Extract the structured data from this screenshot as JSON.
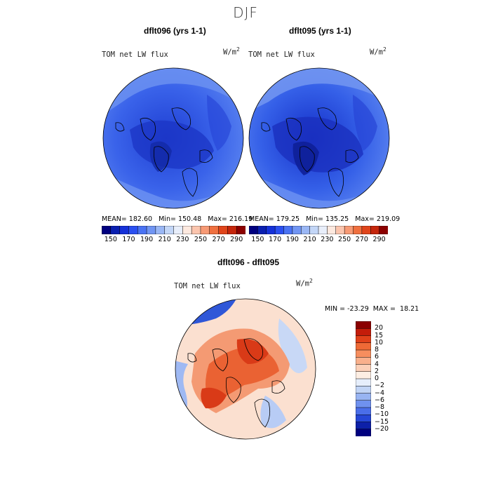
{
  "figure": {
    "title": "DJF"
  },
  "panels": [
    {
      "title": "dflt096 (yrs 1-1)",
      "field_label": "TOM net LW flux",
      "units": "W/m",
      "units_sup": "2",
      "mean_label": "MEAN=",
      "mean": "182.60",
      "min_label": "Min=",
      "min": "150.48",
      "max_label": "Max=",
      "max": "216.19"
    },
    {
      "title": "dflt095 (yrs 1-1)",
      "field_label": "TOM net LW flux",
      "units": "W/m",
      "units_sup": "2",
      "mean_label": "MEAN=",
      "mean": "179.25",
      "min_label": "Min=",
      "min": "135.25",
      "max_label": "Max=",
      "max": "219.09"
    }
  ],
  "abs_colorbar": {
    "tick_labels": [
      "150",
      "170",
      "190",
      "210",
      "230",
      "250",
      "270",
      "290"
    ],
    "colors": [
      "#00007f",
      "#0a1fb0",
      "#1531d8",
      "#2a4ff0",
      "#4a73f3",
      "#7195f3",
      "#9ab7f5",
      "#c3d6f7",
      "#e8eefa",
      "#fde9df",
      "#fbc5ae",
      "#f79a75",
      "#f0703f",
      "#e0451b",
      "#c5260c",
      "#8b0000"
    ]
  },
  "diff_panel": {
    "title": "dflt096 - dflt095",
    "field_label": "TOM net LW flux",
    "units": "W/m",
    "units_sup": "2",
    "min_label": "MIN =",
    "min": "-23.29",
    "max_label": "MAX =",
    "max": "18.21"
  },
  "diff_colorbar": {
    "tick_labels": [
      "20",
      "15",
      "10",
      "8",
      "6",
      "4",
      "2",
      "0",
      "−2",
      "−4",
      "−6",
      "−8",
      "−10",
      "−15",
      "−20"
    ],
    "colors": [
      "#8b0000",
      "#c41c0a",
      "#e0411a",
      "#ee6a36",
      "#f68e5e",
      "#f9b08c",
      "#fbd0b8",
      "#fdeee3",
      "#e6eefb",
      "#c1d4f5",
      "#98b4f2",
      "#6f91ef",
      "#4a6ee9",
      "#2647d6",
      "#0d20a8",
      "#00007f"
    ]
  },
  "colors": {
    "abs_base": "#3d67ec",
    "abs_dark": "#1c39c9",
    "abs_light": "#7ea2f1",
    "diff_base": "#fbd6c4",
    "diff_red": "#e8562a",
    "diff_blue": "#2f57d8"
  }
}
